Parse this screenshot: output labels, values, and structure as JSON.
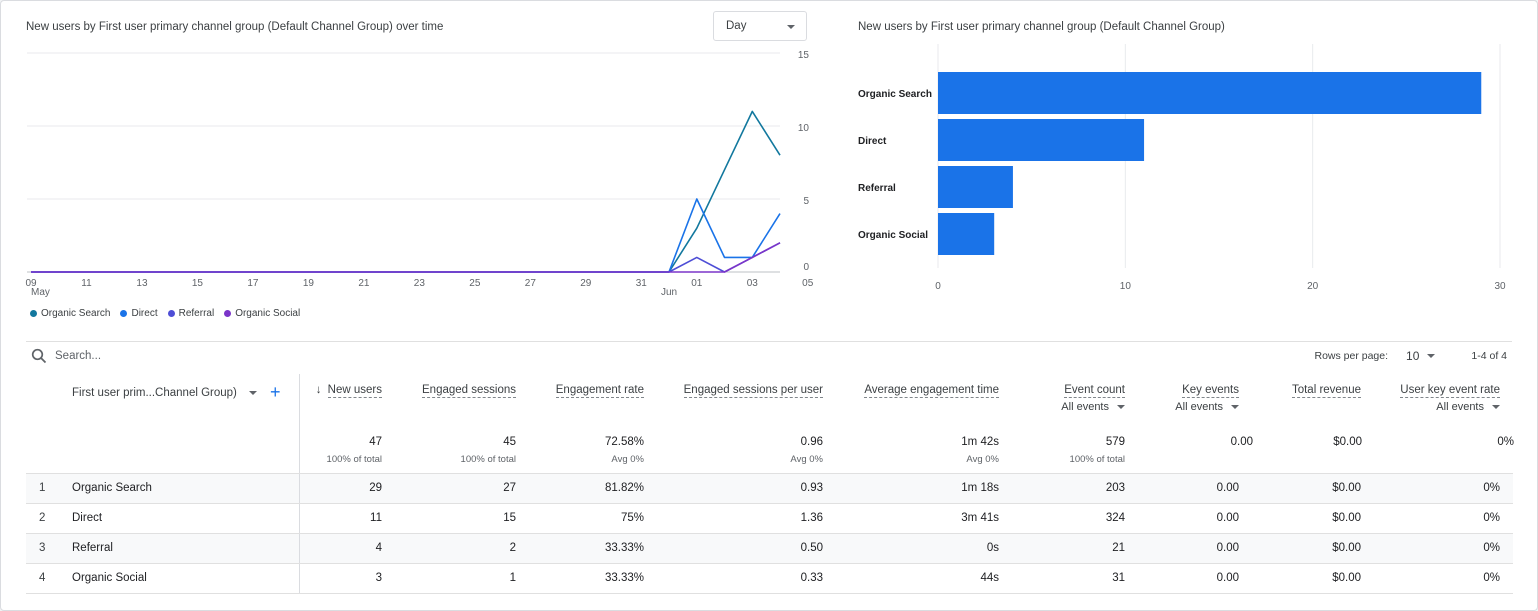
{
  "line_chart": {
    "title": "New users by First user primary channel group (Default Channel Group) over time",
    "granularity": "Day",
    "x_ticks": [
      "09",
      "11",
      "13",
      "15",
      "17",
      "19",
      "21",
      "23",
      "25",
      "27",
      "29",
      "31",
      "01",
      "03",
      "05"
    ],
    "month_labels": {
      "start": "May",
      "june": "Jun"
    },
    "y_ticks": [
      "15",
      "10",
      "5",
      "0"
    ]
  },
  "bar_chart": {
    "title": "New users by First user primary channel group (Default Channel Group)",
    "x_ticks": [
      "0",
      "10",
      "20",
      "30"
    ]
  },
  "chart_data": [
    {
      "type": "line",
      "title": "New users by First user primary channel group (Default Channel Group) over time",
      "x": [
        "May 09",
        "May 10",
        "May 11",
        "May 12",
        "May 13",
        "May 14",
        "May 15",
        "May 16",
        "May 17",
        "May 18",
        "May 19",
        "May 20",
        "May 21",
        "May 22",
        "May 23",
        "May 24",
        "May 25",
        "May 26",
        "May 27",
        "May 28",
        "May 29",
        "May 30",
        "May 31",
        "Jun 01",
        "Jun 02",
        "Jun 03",
        "Jun 04",
        "Jun 05"
      ],
      "ylim": [
        0,
        15
      ],
      "grid": true,
      "legend": "bottom-left",
      "series": [
        {
          "name": "Organic Search",
          "color": "#12789e",
          "values": [
            0,
            0,
            0,
            0,
            0,
            0,
            0,
            0,
            0,
            0,
            0,
            0,
            0,
            0,
            0,
            0,
            0,
            0,
            0,
            0,
            0,
            0,
            0,
            0,
            3,
            7,
            11,
            8
          ]
        },
        {
          "name": "Direct",
          "color": "#1a73e8",
          "values": [
            0,
            0,
            0,
            0,
            0,
            0,
            0,
            0,
            0,
            0,
            0,
            0,
            0,
            0,
            0,
            0,
            0,
            0,
            0,
            0,
            0,
            0,
            0,
            0,
            5,
            1,
            1,
            4
          ]
        },
        {
          "name": "Referral",
          "color": "#4e4ed6",
          "values": [
            0,
            0,
            0,
            0,
            0,
            0,
            0,
            0,
            0,
            0,
            0,
            0,
            0,
            0,
            0,
            0,
            0,
            0,
            0,
            0,
            0,
            0,
            0,
            0,
            1,
            0,
            1,
            2
          ]
        },
        {
          "name": "Organic Social",
          "color": "#7b35c9",
          "values": [
            0,
            0,
            0,
            0,
            0,
            0,
            0,
            0,
            0,
            0,
            0,
            0,
            0,
            0,
            0,
            0,
            0,
            0,
            0,
            0,
            0,
            0,
            0,
            0,
            0,
            0,
            1,
            2
          ]
        }
      ]
    },
    {
      "type": "bar",
      "orientation": "horizontal",
      "title": "New users by First user primary channel group (Default Channel Group)",
      "categories": [
        "Organic Search",
        "Direct",
        "Referral",
        "Organic Social"
      ],
      "values": [
        29,
        11,
        4,
        3
      ],
      "xlim": [
        0,
        30
      ],
      "grid": true,
      "color": "#1a73e8"
    }
  ],
  "toolbar": {
    "search_placeholder": "Search...",
    "rows_per_page_label": "Rows per page:",
    "rows_per_page_value": "10",
    "range": "1-4 of 4"
  },
  "table": {
    "dimension_header": "First user prim...Channel Group)",
    "sort_arrow": "↓",
    "metrics": [
      {
        "key": "new_users",
        "label": "New users",
        "sorted": true,
        "total": "47",
        "total_sub": "100% of total"
      },
      {
        "key": "engaged_sessions",
        "label": "Engaged sessions",
        "total": "45",
        "total_sub": "100% of total"
      },
      {
        "key": "engagement_rate",
        "label": "Engagement rate",
        "total": "72.58%",
        "total_sub": "Avg 0%"
      },
      {
        "key": "eng_sess_per_user",
        "label": "Engaged sessions per user",
        "total": "0.96",
        "total_sub": "Avg 0%"
      },
      {
        "key": "avg_eng_time",
        "label": "Average engagement time",
        "total": "1m 42s",
        "total_sub": "Avg 0%"
      },
      {
        "key": "event_count",
        "label": "Event count",
        "filter": "All events",
        "total": "579",
        "total_sub": "100% of total"
      },
      {
        "key": "key_events",
        "label": "Key events",
        "filter": "All events",
        "total": "0.00",
        "total_sub": ""
      },
      {
        "key": "total_revenue",
        "label": "Total revenue",
        "total": "$0.00",
        "total_sub": ""
      },
      {
        "key": "user_key_event_rate",
        "label": "User key event rate",
        "filter": "All events",
        "total": "0%",
        "total_sub": ""
      }
    ],
    "rows": [
      {
        "rank": "1",
        "name": "Organic Search",
        "values": [
          "29",
          "27",
          "81.82%",
          "0.93",
          "1m 18s",
          "203",
          "0.00",
          "$0.00",
          "0%"
        ]
      },
      {
        "rank": "2",
        "name": "Direct",
        "values": [
          "11",
          "15",
          "75%",
          "1.36",
          "3m 41s",
          "324",
          "0.00",
          "$0.00",
          "0%"
        ]
      },
      {
        "rank": "3",
        "name": "Referral",
        "values": [
          "4",
          "2",
          "33.33%",
          "0.50",
          "0s",
          "21",
          "0.00",
          "$0.00",
          "0%"
        ]
      },
      {
        "rank": "4",
        "name": "Organic Social",
        "values": [
          "3",
          "1",
          "33.33%",
          "0.33",
          "44s",
          "31",
          "0.00",
          "$0.00",
          "0%"
        ]
      }
    ]
  },
  "icons": {
    "search": "search-icon",
    "add": "plus-icon",
    "dropdown": "caret-down-icon"
  }
}
